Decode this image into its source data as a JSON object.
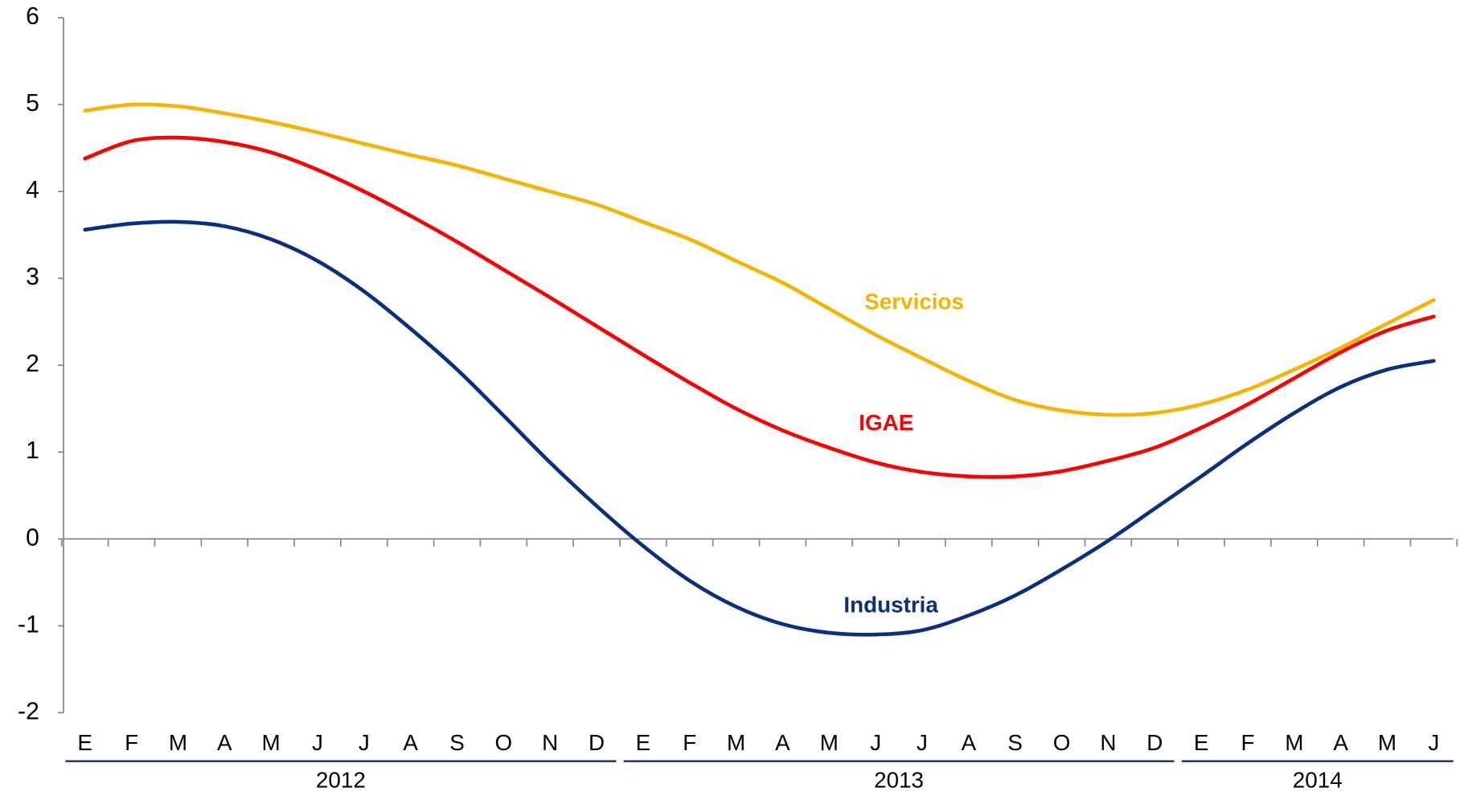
{
  "chart_data": {
    "type": "line",
    "categories": [
      "E",
      "F",
      "M",
      "A",
      "M",
      "J",
      "J",
      "A",
      "S",
      "O",
      "N",
      "D",
      "E",
      "F",
      "M",
      "A",
      "M",
      "J",
      "J",
      "A",
      "S",
      "O",
      "N",
      "D",
      "E",
      "F",
      "M",
      "A",
      "M",
      "J"
    ],
    "years": [
      "2012",
      "2013",
      "2014"
    ],
    "series": [
      {
        "name": "Servicios",
        "color": "#f5b400",
        "values": [
          4.93,
          5.0,
          4.98,
          4.9,
          4.8,
          4.68,
          4.55,
          4.42,
          4.3,
          4.15,
          4.0,
          3.85,
          3.65,
          3.45,
          3.2,
          2.95,
          2.65,
          2.35,
          2.08,
          1.82,
          1.6,
          1.48,
          1.43,
          1.45,
          1.55,
          1.72,
          1.95,
          2.2,
          2.48,
          2.75
        ]
      },
      {
        "name": "IGAE",
        "color": "#ff0000",
        "values": [
          4.38,
          4.58,
          4.62,
          4.57,
          4.45,
          4.25,
          4.0,
          3.72,
          3.42,
          3.1,
          2.78,
          2.45,
          2.12,
          1.8,
          1.5,
          1.25,
          1.05,
          0.88,
          0.77,
          0.72,
          0.72,
          0.78,
          0.9,
          1.05,
          1.28,
          1.55,
          1.85,
          2.15,
          2.4,
          2.56
        ]
      },
      {
        "name": "Industria",
        "color": "#0a2f80",
        "values": [
          3.56,
          3.63,
          3.65,
          3.6,
          3.45,
          3.2,
          2.85,
          2.42,
          1.95,
          1.42,
          0.88,
          0.38,
          -0.08,
          -0.48,
          -0.78,
          -0.98,
          -1.08,
          -1.1,
          -1.05,
          -0.88,
          -0.65,
          -0.35,
          -0.02,
          0.35,
          0.72,
          1.1,
          1.45,
          1.75,
          1.95,
          2.05
        ]
      }
    ],
    "ylim": [
      -2,
      6
    ],
    "yticks": [
      -2,
      -1,
      0,
      1,
      2,
      3,
      4,
      5,
      6
    ]
  }
}
